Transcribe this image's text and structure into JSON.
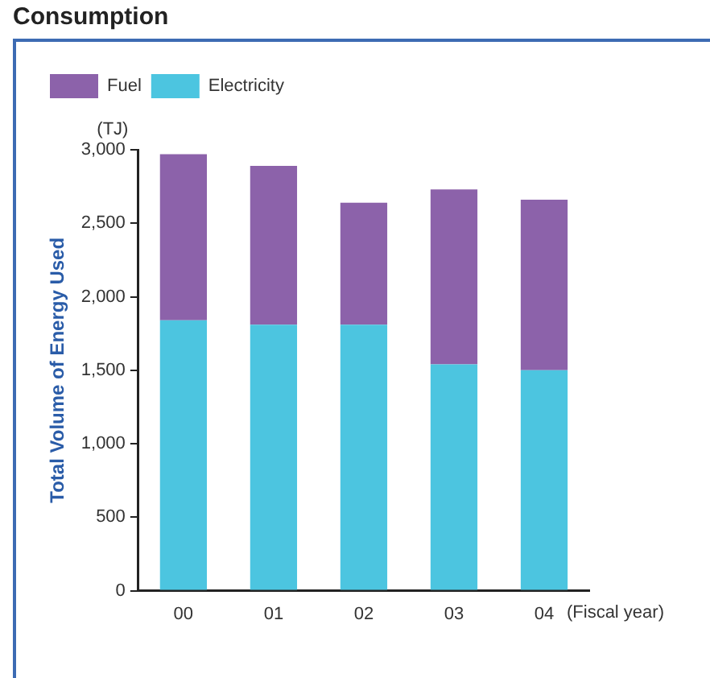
{
  "chart_data": {
    "type": "bar",
    "title": "Consumption",
    "ylabel": "Total Volume of Energy Used",
    "xlabel": "(Fiscal year)",
    "annotations": [
      "(TJ)"
    ],
    "categories": [
      "00",
      "01",
      "02",
      "03",
      "04"
    ],
    "series": [
      {
        "name": "Electricity",
        "color": "#4cc5e0",
        "values": [
          1840,
          1810,
          1810,
          1540,
          1500
        ]
      },
      {
        "name": "Fuel",
        "color": "#8c62aa",
        "values": [
          1130,
          1080,
          830,
          1190,
          1160
        ]
      }
    ],
    "stacked": true,
    "ylim": [
      0,
      3000
    ],
    "yticks": [
      {
        "value": 0,
        "label": "0"
      },
      {
        "value": 500,
        "label": "500"
      },
      {
        "value": 1000,
        "label": "1,000"
      },
      {
        "value": 1500,
        "label": "1,500"
      },
      {
        "value": 2000,
        "label": "2,000"
      },
      {
        "value": 2500,
        "label": "2,500"
      },
      {
        "value": 3000,
        "label": "3,000"
      }
    ],
    "grid": false,
    "legend": "top left"
  }
}
